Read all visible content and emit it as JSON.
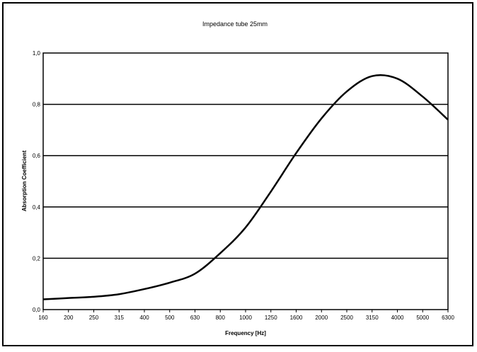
{
  "chart_data": {
    "type": "line",
    "title": "Impedance tube 25mm",
    "xlabel": "Frequency [Hz]",
    "ylabel": "Absorption Coefficient",
    "x": [
      "160",
      "200",
      "250",
      "315",
      "400",
      "500",
      "630",
      "800",
      "1000",
      "1250",
      "1600",
      "2000",
      "2500",
      "3150",
      "4000",
      "5000",
      "6300"
    ],
    "yticks": [
      "0,0",
      "0,2",
      "0,4",
      "0,6",
      "0,8",
      "1,0"
    ],
    "ylim": [
      0,
      1.0
    ],
    "grid": true,
    "legend": "none",
    "series": [
      {
        "values": [
          0.04,
          0.045,
          0.05,
          0.06,
          0.08,
          0.105,
          0.14,
          0.22,
          0.32,
          0.46,
          0.61,
          0.745,
          0.85,
          0.91,
          0.9,
          0.83,
          0.74
        ]
      }
    ]
  }
}
